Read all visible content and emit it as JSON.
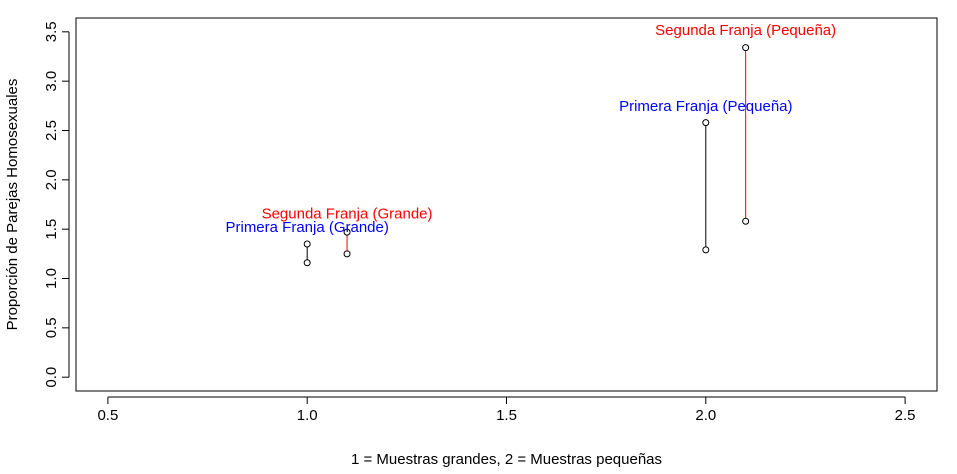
{
  "chart_data": {
    "type": "scatter",
    "title": "",
    "xlabel": "1 = Muestras grandes, 2 = Muestras pequeñas",
    "ylabel": "Proporción de Parejas Homosexuales",
    "xlim": [
      0.42,
      2.58
    ],
    "ylim": [
      -0.14,
      3.64
    ],
    "xticks": [
      0.5,
      1.0,
      1.5,
      2.0,
      2.5
    ],
    "xtick_labels": [
      "0.5",
      "1.0",
      "1.5",
      "2.0",
      "2.5"
    ],
    "yticks": [
      0.0,
      0.5,
      1.0,
      1.5,
      2.0,
      2.5,
      3.0,
      3.5
    ],
    "ytick_labels": [
      "0.0",
      "0.5",
      "1.0",
      "1.5",
      "2.0",
      "2.5",
      "3.0",
      "3.5"
    ],
    "grid": false,
    "legend": "none",
    "segments": [
      {
        "x": 1.0,
        "y": [
          1.16,
          1.35
        ],
        "color": "#000000"
      },
      {
        "x": 1.1,
        "y": [
          1.25,
          1.47
        ],
        "color": "#ff0000"
      },
      {
        "x": 2.0,
        "y": [
          1.29,
          2.58
        ],
        "color": "#000000"
      },
      {
        "x": 2.1,
        "y": [
          1.58,
          3.34
        ],
        "color": "#ff0000"
      }
    ],
    "annotations": [
      {
        "text": "Primera Franja (Grande)",
        "x": 1.0,
        "y": 1.52,
        "color": "#0000ff"
      },
      {
        "text": "Segunda Franja (Grande)",
        "x": 1.1,
        "y": 1.66,
        "color": "#ff0000"
      },
      {
        "text": "Primera Franja (Pequeña)",
        "x": 2.0,
        "y": 2.75,
        "color": "#0000ff"
      },
      {
        "text": "Segunda Franja (Pequeña)",
        "x": 2.1,
        "y": 3.52,
        "color": "#ff0000"
      }
    ]
  }
}
